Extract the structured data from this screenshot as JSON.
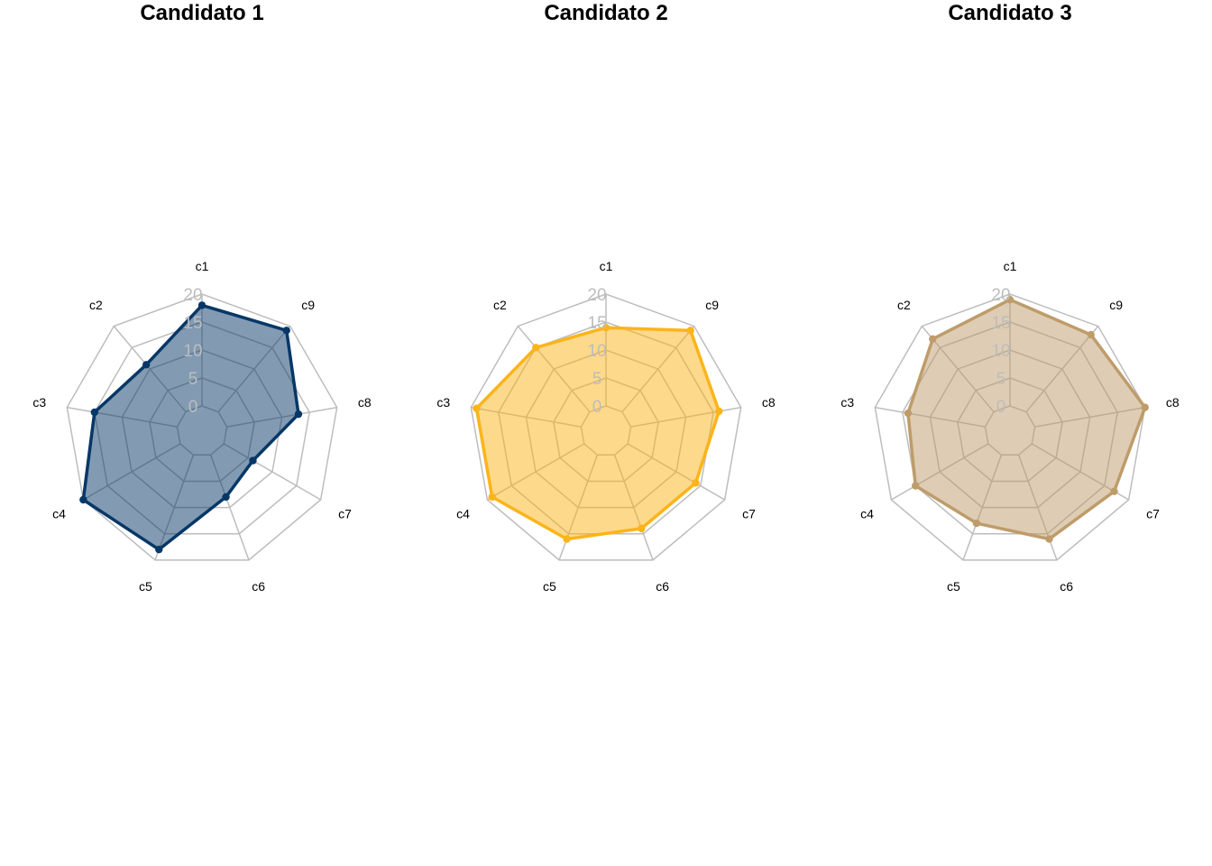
{
  "chart_data": [
    {
      "type": "radar",
      "title": "Candidato 1",
      "axes": [
        "c1",
        "c2",
        "c3",
        "c4",
        "c5",
        "c6",
        "c7",
        "c8",
        "c9"
      ],
      "ticks": [
        "0",
        "5",
        "10",
        "15",
        "20"
      ],
      "range": [
        0,
        20
      ],
      "color": "#063767",
      "values": [
        18,
        11,
        15,
        20,
        18,
        8,
        6,
        13,
        19
      ]
    },
    {
      "type": "radar",
      "title": "Candidato 2",
      "axes": [
        "c1",
        "c2",
        "c3",
        "c4",
        "c5",
        "c6",
        "c7",
        "c8",
        "c9"
      ],
      "ticks": [
        "0",
        "5",
        "10",
        "15",
        "20"
      ],
      "range": [
        0,
        20
      ],
      "color": "#fbb41a",
      "values": [
        14,
        15,
        19,
        19,
        16,
        14,
        14,
        16,
        19
      ]
    },
    {
      "type": "radar",
      "title": "Candidato 3",
      "axes": [
        "c1",
        "c2",
        "c3",
        "c4",
        "c5",
        "c6",
        "c7",
        "c8",
        "c9"
      ],
      "ticks": [
        "0",
        "5",
        "10",
        "15",
        "20"
      ],
      "range": [
        0,
        20
      ],
      "color": "#be9c6a",
      "values": [
        19,
        17,
        14,
        15,
        13,
        16,
        17,
        20,
        18
      ]
    }
  ]
}
